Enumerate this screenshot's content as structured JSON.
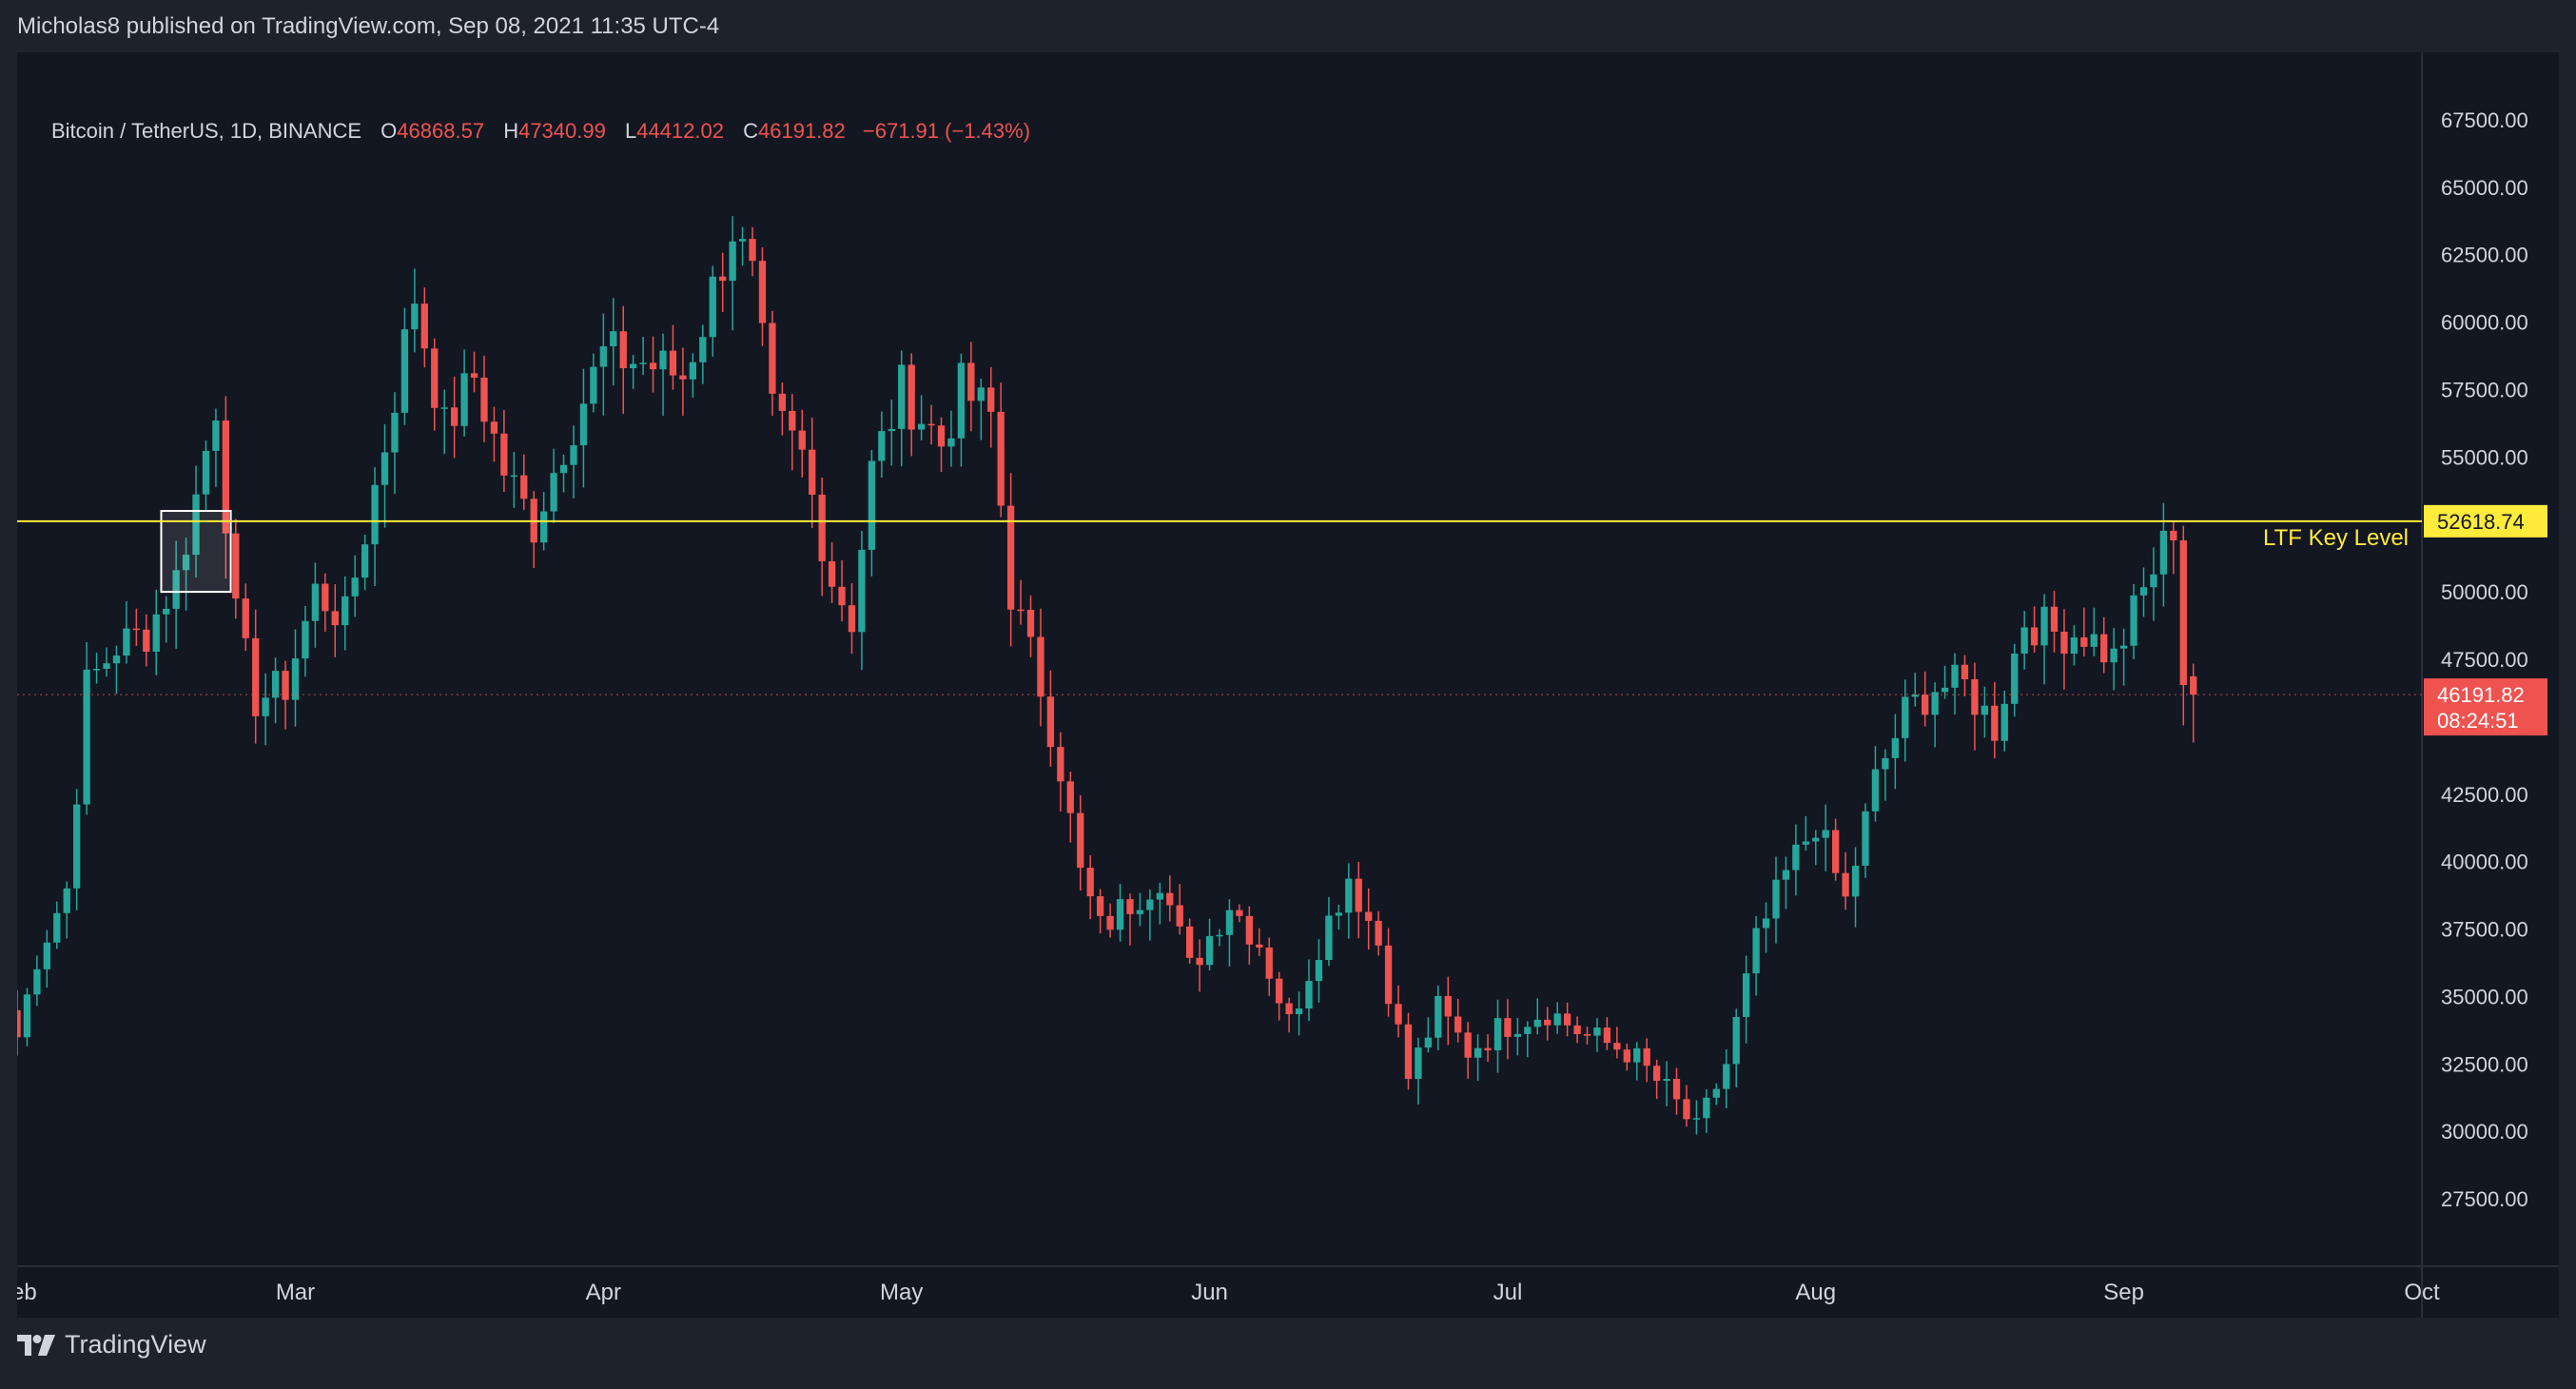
{
  "header": {
    "published": "Micholas8 published on TradingView.com, Sep 08, 2021 11:35 UTC-4"
  },
  "legend": {
    "symbol": "Bitcoin / TetherUS, 1D, BINANCE",
    "open_label": "O",
    "open": "46868.57",
    "high_label": "H",
    "high": "47340.99",
    "low_label": "L",
    "low": "44412.02",
    "close_label": "C",
    "close": "46191.82",
    "change": "−671.91 (−1.43%)"
  },
  "footer": {
    "brand": "TradingView"
  },
  "colors": {
    "background": "#131722",
    "up": "#26a69a",
    "down": "#ef5350",
    "key_level": "#ffeb3b",
    "text": "#d1d4dc"
  },
  "chart_data": {
    "type": "candlestick",
    "symbol": "Bitcoin / TetherUS",
    "timeframe": "1D",
    "exchange": "BINANCE",
    "ylim": [
      25000,
      70000
    ],
    "y_ticks": [
      27500,
      30000,
      32500,
      35000,
      37500,
      40000,
      42500,
      45000,
      47500,
      50000,
      52500,
      55000,
      57500,
      60000,
      62500,
      65000,
      67500
    ],
    "y_tick_labels": [
      "27500.00",
      "30000.00",
      "32500.00",
      "35000.00",
      "37500.00",
      "40000.00",
      "42500.00",
      "45000.00",
      "47500.00",
      "50000.00",
      "52500.00",
      "55000.00",
      "57500.00",
      "60000.00",
      "62500.00",
      "65000.00",
      "67500.00"
    ],
    "x_range": [
      "2021-02-01",
      "2021-10-01"
    ],
    "x_ticks": [
      {
        "date": "2021-02-01",
        "label": "Feb"
      },
      {
        "date": "2021-03-01",
        "label": "Mar"
      },
      {
        "date": "2021-04-01",
        "label": "Apr"
      },
      {
        "date": "2021-05-01",
        "label": "May"
      },
      {
        "date": "2021-06-01",
        "label": "Jun"
      },
      {
        "date": "2021-07-01",
        "label": "Jul"
      },
      {
        "date": "2021-08-01",
        "label": "Aug"
      },
      {
        "date": "2021-09-01",
        "label": "Sep"
      },
      {
        "date": "2021-10-01",
        "label": "Oct"
      }
    ],
    "key_level": {
      "value": 52618.74,
      "label": "52618.74",
      "name": "LTF Key Level"
    },
    "last_price": {
      "value": 46191.82,
      "label": "46191.82",
      "countdown": "08:24:51"
    },
    "highlight_box": {
      "from": "2021-02-16",
      "to": "2021-02-22",
      "low": 50000,
      "high": 53000
    },
    "anchors": [
      [
        "2021-02-01",
        33500
      ],
      [
        "2021-02-03",
        36500
      ],
      [
        "2021-02-06",
        39000
      ],
      [
        "2021-02-08",
        46500
      ],
      [
        "2021-02-11",
        48000
      ],
      [
        "2021-02-14",
        48500
      ],
      [
        "2021-02-17",
        50500
      ],
      [
        "2021-02-19",
        53500
      ],
      [
        "2021-02-21",
        57000
      ],
      [
        "2021-02-23",
        49000
      ],
      [
        "2021-02-25",
        46000
      ],
      [
        "2021-02-28",
        46500
      ],
      [
        "2021-03-03",
        50000
      ],
      [
        "2021-03-06",
        49000
      ],
      [
        "2021-03-10",
        55500
      ],
      [
        "2021-03-13",
        61000
      ],
      [
        "2021-03-16",
        56000
      ],
      [
        "2021-03-19",
        58000
      ],
      [
        "2021-03-22",
        54500
      ],
      [
        "2021-03-25",
        52500
      ],
      [
        "2021-03-28",
        55500
      ],
      [
        "2021-04-01",
        58800
      ],
      [
        "2021-04-05",
        58500
      ],
      [
        "2021-04-09",
        58000
      ],
      [
        "2021-04-11",
        60000
      ],
      [
        "2021-04-14",
        63500
      ],
      [
        "2021-04-16",
        61500
      ],
      [
        "2021-04-18",
        56500
      ],
      [
        "2021-04-21",
        55000
      ],
      [
        "2021-04-24",
        50500
      ],
      [
        "2021-04-26",
        49000
      ],
      [
        "2021-04-28",
        54500
      ],
      [
        "2021-05-01",
        57500
      ],
      [
        "2021-05-03",
        56500
      ],
      [
        "2021-05-05",
        55500
      ],
      [
        "2021-05-07",
        57500
      ],
      [
        "2021-05-10",
        56500
      ],
      [
        "2021-05-12",
        50000
      ],
      [
        "2021-05-15",
        46500
      ],
      [
        "2021-05-17",
        43500
      ],
      [
        "2021-05-19",
        39500
      ],
      [
        "2021-05-21",
        37500
      ],
      [
        "2021-05-24",
        38500
      ],
      [
        "2021-05-27",
        39500
      ],
      [
        "2021-05-30",
        36000
      ],
      [
        "2021-06-03",
        38500
      ],
      [
        "2021-06-06",
        37000
      ],
      [
        "2021-06-09",
        34000
      ],
      [
        "2021-06-12",
        37000
      ],
      [
        "2021-06-15",
        39500
      ],
      [
        "2021-06-18",
        37000
      ],
      [
        "2021-06-21",
        32000
      ],
      [
        "2021-06-24",
        34500
      ],
      [
        "2021-06-27",
        33000
      ],
      [
        "2021-07-01",
        34000
      ],
      [
        "2021-07-05",
        34500
      ],
      [
        "2021-07-09",
        33500
      ],
      [
        "2021-07-13",
        33000
      ],
      [
        "2021-07-17",
        31500
      ],
      [
        "2021-07-20",
        30000
      ],
      [
        "2021-07-23",
        32500
      ],
      [
        "2021-07-26",
        37000
      ],
      [
        "2021-07-29",
        39500
      ],
      [
        "2021-08-01",
        41500
      ],
      [
        "2021-08-04",
        38500
      ],
      [
        "2021-08-07",
        43000
      ],
      [
        "2021-08-10",
        45500
      ],
      [
        "2021-08-13",
        46500
      ],
      [
        "2021-08-16",
        46500
      ],
      [
        "2021-08-19",
        45000
      ],
      [
        "2021-08-22",
        49000
      ],
      [
        "2021-08-25",
        48500
      ],
      [
        "2021-08-28",
        48500
      ],
      [
        "2021-08-31",
        47500
      ],
      [
        "2021-09-03",
        50000
      ],
      [
        "2021-09-06",
        52500
      ],
      [
        "2021-09-07",
        46800
      ],
      [
        "2021-09-08",
        46191.82
      ]
    ]
  }
}
